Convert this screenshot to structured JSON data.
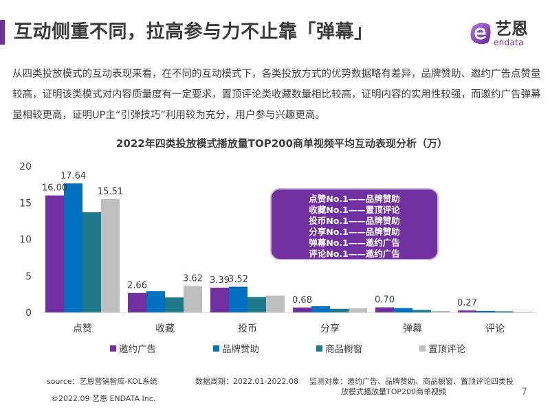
{
  "header": {
    "title": "互动侧重不同，拉高参与力不止靠「弹幕」",
    "logo_cn": "艺恩",
    "logo_en": "endata",
    "accent_color": "#7030a0"
  },
  "intro": "从四类投放模式的互动表现来看，在不同的互动模式下，各类投放方式的优势数据略有差异，品牌赞助、邀约广告点赞量较高，证明该类模式对内容质量度有一定要求，置顶评论类收藏数量相比较高，证明内容的实用性较强，而邀约广告弹幕量相较更高，证明UP主“引弹技巧”利用较为充分，用户参与兴趣更高。",
  "callout": {
    "lines": [
      "点赞No.1——品牌赞助",
      "收藏No.1——置顶评论",
      "投币No.1——品牌赞助",
      "分享No.1——品牌赞助",
      "弹幕No.1——邀约广告",
      "评论No.1——邀约广告"
    ]
  },
  "chart_data": {
    "type": "bar",
    "title": "2022年四类投放模式播放量TOP200商单视频平均互动表现分析（万）",
    "xlabel": "",
    "ylabel": "",
    "ylim": [
      0,
      20
    ],
    "yticks": [
      0,
      5,
      10,
      15,
      20
    ],
    "grid": false,
    "legend_position": "bottom",
    "categories": [
      "点赞",
      "收藏",
      "投币",
      "分享",
      "弹幕",
      "评论"
    ],
    "series": [
      {
        "name": "邀约广告",
        "color": "#7030a0",
        "values": [
          16.0,
          2.66,
          3.39,
          0.68,
          0.7,
          0.27
        ],
        "labels": [
          "16.00",
          "2.66",
          "3.39",
          "0.68",
          "0.70",
          "0.27"
        ]
      },
      {
        "name": "品牌赞助",
        "color": "#0070c0",
        "values": [
          17.64,
          2.9,
          3.52,
          0.85,
          0.6,
          0.2
        ],
        "labels": [
          "17.64",
          "",
          "3.52",
          "",
          "",
          ""
        ]
      },
      {
        "name": "商品橱窗",
        "color": "#1f7b8a",
        "values": [
          13.7,
          2.05,
          2.1,
          0.5,
          0.35,
          0.15
        ],
        "labels": [
          "",
          "",
          "",
          "",
          "",
          ""
        ]
      },
      {
        "name": "置顶评论",
        "color": "#bfbfbf",
        "values": [
          15.51,
          3.62,
          2.3,
          0.55,
          0.2,
          0.1
        ],
        "labels": [
          "15.51",
          "3.62",
          "",
          "",
          "",
          ""
        ]
      }
    ]
  },
  "footer": {
    "source": "source：艺恩营销智库-KOL系统",
    "period": "数据周期：2022.01-2022.08",
    "monitor_line1": "监测对象：邀约广告、品牌赞助、商品橱窗、置顶评论四类投",
    "monitor_line2": "放模式播放量TOP200商单视频",
    "copyright": "©2022.09 艺恩 ENDATA Inc.",
    "page_number": "7"
  }
}
